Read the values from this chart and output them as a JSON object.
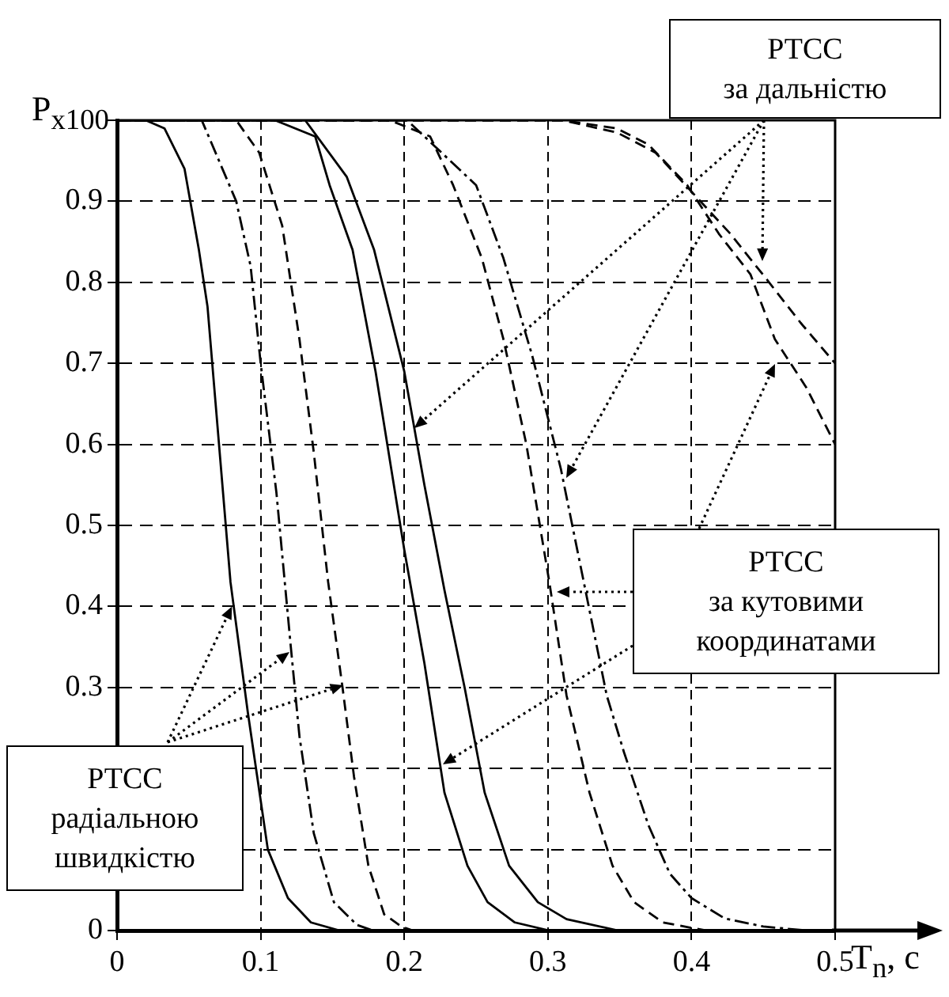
{
  "chart_data": {
    "type": "line",
    "ylabel": "P$_{x100}$",
    "xlabel": "T$_{n}$, c",
    "xlim": [
      0,
      0.5
    ],
    "ylim": [
      0,
      1
    ],
    "xticks": [
      0,
      0.1,
      0.2,
      0.3,
      0.4,
      0.5
    ],
    "yticks": [
      0,
      {
        "value": 0.1,
        "label": null
      },
      {
        "value": 0.2,
        "label": null
      },
      0.3,
      0.4,
      0.5,
      0.6,
      0.7,
      0.8,
      0.9,
      {
        "value": 1,
        "label": null
      }
    ],
    "grid": true,
    "legend": false,
    "marker": "none",
    "annotations": [
      {
        "text": "РТСС\nза дальністю",
        "x": 0.207,
        "y": 0.62
      },
      "РТСС\nза кутовими\nкоординатами",
      {
        "text": "РТСС\nрадіальною\nшвидкістю",
        "x": 0.08,
        "y": 0.4
      }
    ],
    "series": [
      {
        "color": "#000000",
        "line_style": "solid",
        "x": [
          0,
          0.02,
          0.033,
          0.047,
          0.057,
          0.063,
          0.071,
          0.079,
          0.091,
          0.105,
          0.119,
          0.135,
          0.155
        ],
        "values": [
          1,
          1,
          0.99,
          0.94,
          0.84,
          0.77,
          0.6,
          0.43,
          0.27,
          0.1,
          0.04,
          0.01,
          0
        ]
      },
      {
        "color": "#000000",
        "line_style": "dashdot",
        "x": [
          0,
          0.05,
          0.059,
          0.083,
          0.093,
          0.1,
          0.111,
          0.121,
          0.127,
          0.137,
          0.151,
          0.167,
          0.178
        ],
        "values": [
          1,
          1,
          1,
          0.9,
          0.82,
          0.7,
          0.54,
          0.35,
          0.24,
          0.12,
          0.035,
          0.007,
          0
        ]
      },
      {
        "color": "#000000",
        "line_style": "dashed",
        "x": [
          0,
          0.083,
          0.099,
          0.115,
          0.127,
          0.137,
          0.147,
          0.157,
          0.165,
          0.175,
          0.186,
          0.198,
          0.206
        ],
        "values": [
          1,
          1,
          0.96,
          0.87,
          0.73,
          0.59,
          0.43,
          0.3,
          0.19,
          0.08,
          0.02,
          0.005,
          0
        ]
      },
      {
        "color": "#000000",
        "line_style": "solid",
        "x": [
          0,
          0.11,
          0.138,
          0.148,
          0.164,
          0.18,
          0.2,
          0.214,
          0.228,
          0.244,
          0.258,
          0.277,
          0.301
        ],
        "values": [
          1,
          1,
          0.98,
          0.92,
          0.84,
          0.69,
          0.47,
          0.33,
          0.17,
          0.08,
          0.035,
          0.01,
          0
        ]
      },
      {
        "color": "#000000",
        "line_style": "solid",
        "x": [
          0,
          0.125,
          0.131,
          0.16,
          0.179,
          0.2,
          0.214,
          0.228,
          0.242,
          0.256,
          0.273,
          0.293,
          0.313,
          0.349
        ],
        "values": [
          1,
          1,
          1,
          0.93,
          0.84,
          0.69,
          0.55,
          0.42,
          0.3,
          0.17,
          0.08,
          0.035,
          0.014,
          0
        ]
      },
      {
        "color": "#000000",
        "line_style": "dashed",
        "x": [
          0,
          0.19,
          0.218,
          0.234,
          0.254,
          0.269,
          0.285,
          0.301,
          0.313,
          0.329,
          0.345,
          0.36,
          0.38,
          0.41
        ],
        "values": [
          1,
          1,
          0.98,
          0.92,
          0.83,
          0.73,
          0.6,
          0.43,
          0.29,
          0.17,
          0.08,
          0.035,
          0.01,
          0
        ]
      },
      {
        "color": "#000000",
        "line_style": "dashdot",
        "x": [
          0,
          0.202,
          0.25,
          0.269,
          0.289,
          0.309,
          0.325,
          0.341,
          0.353,
          0.37,
          0.385,
          0.4,
          0.423,
          0.45,
          0.48
        ],
        "values": [
          1,
          1,
          0.92,
          0.83,
          0.71,
          0.57,
          0.43,
          0.29,
          0.22,
          0.13,
          0.07,
          0.04,
          0.015,
          0.005,
          0
        ]
      },
      {
        "color": "#000000",
        "line_style": "dashed",
        "x": [
          0,
          0.31,
          0.348,
          0.375,
          0.401,
          0.427,
          0.454,
          0.476,
          0.5
        ],
        "values": [
          1,
          1,
          0.985,
          0.96,
          0.91,
          0.86,
          0.8,
          0.75,
          0.7
        ]
      },
      {
        "color": "#000000",
        "line_style": "dashed",
        "x": [
          0,
          0.31,
          0.348,
          0.37,
          0.397,
          0.419,
          0.441,
          0.458,
          0.48,
          0.5
        ],
        "values": [
          1,
          1,
          0.99,
          0.97,
          0.92,
          0.86,
          0.81,
          0.73,
          0.67,
          0.6
        ]
      }
    ]
  }
}
